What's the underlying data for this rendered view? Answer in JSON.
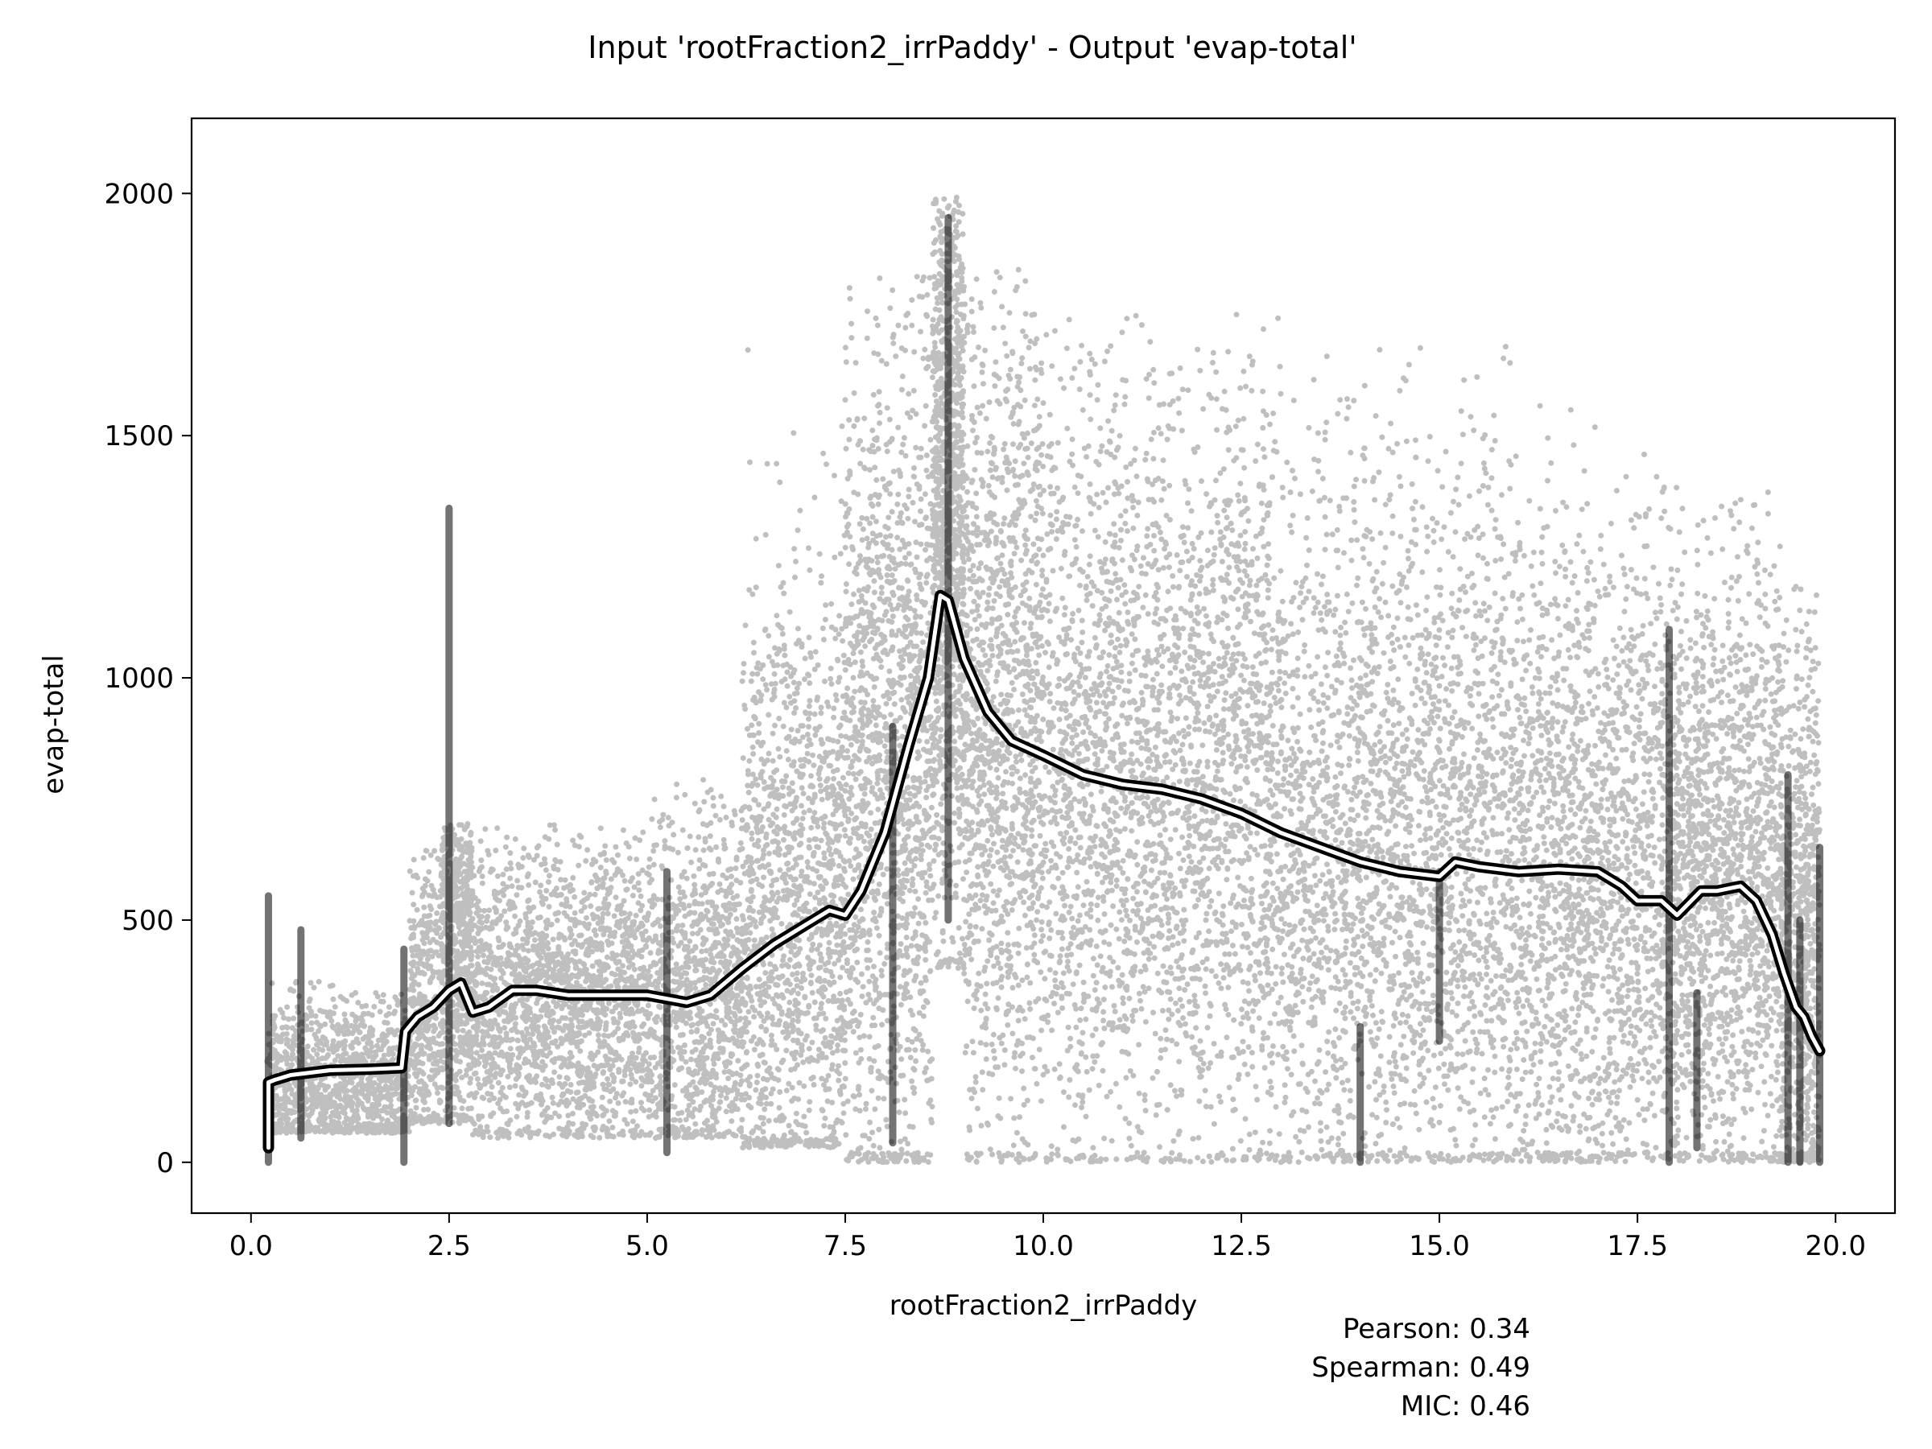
{
  "chart_data": {
    "type": "scatter",
    "title": "Input 'rootFraction2_irrPaddy' - Output 'evap-total'",
    "xlabel": "rootFraction2_irrPaddy",
    "ylabel": "evap-total",
    "xlim": [
      -0.75,
      20.75
    ],
    "ylim": [
      -105,
      2155
    ],
    "xticks": [
      0.0,
      2.5,
      5.0,
      7.5,
      10.0,
      12.5,
      15.0,
      17.5,
      20.0
    ],
    "xtick_labels": [
      "0.0",
      "2.5",
      "5.0",
      "7.5",
      "10.0",
      "12.5",
      "15.0",
      "17.5",
      "20.0"
    ],
    "yticks": [
      0,
      500,
      1000,
      1500,
      2000
    ],
    "ytick_labels": [
      "0",
      "500",
      "1000",
      "1500",
      "2000"
    ],
    "grid": false,
    "point_color": "#000000",
    "point_opacity": 0.25,
    "density_profile": [
      {
        "x0": 0.2,
        "x1": 2.0,
        "lo": 60,
        "hi": 380,
        "center": 160,
        "spread": 90,
        "n": 1200
      },
      {
        "x0": 2.0,
        "x1": 2.4,
        "lo": 80,
        "hi": 650,
        "center": 300,
        "spread": 170,
        "n": 400
      },
      {
        "x0": 2.4,
        "x1": 2.8,
        "lo": 80,
        "hi": 700,
        "center": 450,
        "spread": 200,
        "n": 700
      },
      {
        "x0": 2.8,
        "x1": 5.0,
        "lo": 50,
        "hi": 700,
        "center": 330,
        "spread": 160,
        "n": 1900
      },
      {
        "x0": 5.0,
        "x1": 6.2,
        "lo": 50,
        "hi": 800,
        "center": 340,
        "spread": 190,
        "n": 1000
      },
      {
        "x0": 6.2,
        "x1": 7.5,
        "lo": 30,
        "hi": 1700,
        "center": 520,
        "spread": 330,
        "n": 1400
      },
      {
        "x0": 7.5,
        "x1": 8.6,
        "lo": 0,
        "hi": 1850,
        "center": 800,
        "spread": 450,
        "n": 1500
      },
      {
        "x0": 8.6,
        "x1": 9.0,
        "lo": 400,
        "hi": 2000,
        "center": 1300,
        "spread": 380,
        "n": 1200
      },
      {
        "x0": 9.0,
        "x1": 10.0,
        "lo": 0,
        "hi": 1850,
        "center": 900,
        "spread": 420,
        "n": 1300
      },
      {
        "x0": 10.0,
        "x1": 13.0,
        "lo": 0,
        "hi": 1750,
        "center": 780,
        "spread": 400,
        "n": 2800
      },
      {
        "x0": 13.0,
        "x1": 16.0,
        "lo": 0,
        "hi": 1700,
        "center": 650,
        "spread": 380,
        "n": 2600
      },
      {
        "x0": 16.0,
        "x1": 17.8,
        "lo": 0,
        "hi": 1600,
        "center": 600,
        "spread": 360,
        "n": 1700
      },
      {
        "x0": 17.8,
        "x1": 19.3,
        "lo": 0,
        "hi": 1400,
        "center": 600,
        "spread": 320,
        "n": 1800
      },
      {
        "x0": 19.3,
        "x1": 19.8,
        "lo": 0,
        "hi": 1200,
        "center": 450,
        "spread": 320,
        "n": 800
      }
    ],
    "vertical_streaks": [
      {
        "x": 0.22,
        "lo": 0,
        "hi": 550
      },
      {
        "x": 0.63,
        "lo": 50,
        "hi": 480
      },
      {
        "x": 1.93,
        "lo": 0,
        "hi": 440
      },
      {
        "x": 2.5,
        "lo": 80,
        "hi": 1350
      },
      {
        "x": 5.25,
        "lo": 20,
        "hi": 600
      },
      {
        "x": 8.1,
        "lo": 40,
        "hi": 900
      },
      {
        "x": 8.8,
        "lo": 500,
        "hi": 1950
      },
      {
        "x": 14.0,
        "lo": 0,
        "hi": 280
      },
      {
        "x": 15.0,
        "lo": 250,
        "hi": 600
      },
      {
        "x": 17.9,
        "lo": 0,
        "hi": 1100
      },
      {
        "x": 18.25,
        "lo": 30,
        "hi": 350
      },
      {
        "x": 19.4,
        "lo": 0,
        "hi": 800
      },
      {
        "x": 19.55,
        "lo": 0,
        "hi": 500
      },
      {
        "x": 19.8,
        "lo": 0,
        "hi": 650
      }
    ],
    "trend_line": {
      "x": [
        0.22,
        0.22,
        0.3,
        0.5,
        1.0,
        1.5,
        1.9,
        1.95,
        2.1,
        2.3,
        2.5,
        2.65,
        2.8,
        3.0,
        3.3,
        3.6,
        4.0,
        4.5,
        5.0,
        5.5,
        5.8,
        6.2,
        6.6,
        7.0,
        7.3,
        7.5,
        7.7,
        8.0,
        8.3,
        8.55,
        8.7,
        8.8,
        9.0,
        9.3,
        9.6,
        10.0,
        10.5,
        11.0,
        11.5,
        12.0,
        12.5,
        13.0,
        13.5,
        14.0,
        14.5,
        15.0,
        15.2,
        15.5,
        16.0,
        16.5,
        17.0,
        17.3,
        17.5,
        17.8,
        18.0,
        18.3,
        18.5,
        18.8,
        19.0,
        19.2,
        19.35,
        19.5,
        19.6,
        19.7,
        19.8
      ],
      "y": [
        30,
        165,
        170,
        180,
        190,
        192,
        195,
        270,
        300,
        320,
        355,
        370,
        310,
        320,
        355,
        355,
        345,
        345,
        345,
        330,
        345,
        400,
        450,
        490,
        520,
        510,
        560,
        680,
        860,
        1000,
        1170,
        1160,
        1040,
        930,
        870,
        840,
        800,
        780,
        770,
        750,
        720,
        680,
        650,
        620,
        600,
        590,
        620,
        610,
        600,
        605,
        600,
        570,
        540,
        540,
        510,
        560,
        560,
        570,
        540,
        470,
        390,
        320,
        300,
        260,
        230
      ]
    }
  },
  "stats": {
    "pearson": "Pearson: 0.34",
    "spearman": "Spearman: 0.49",
    "mic": "MIC: 0.46"
  }
}
